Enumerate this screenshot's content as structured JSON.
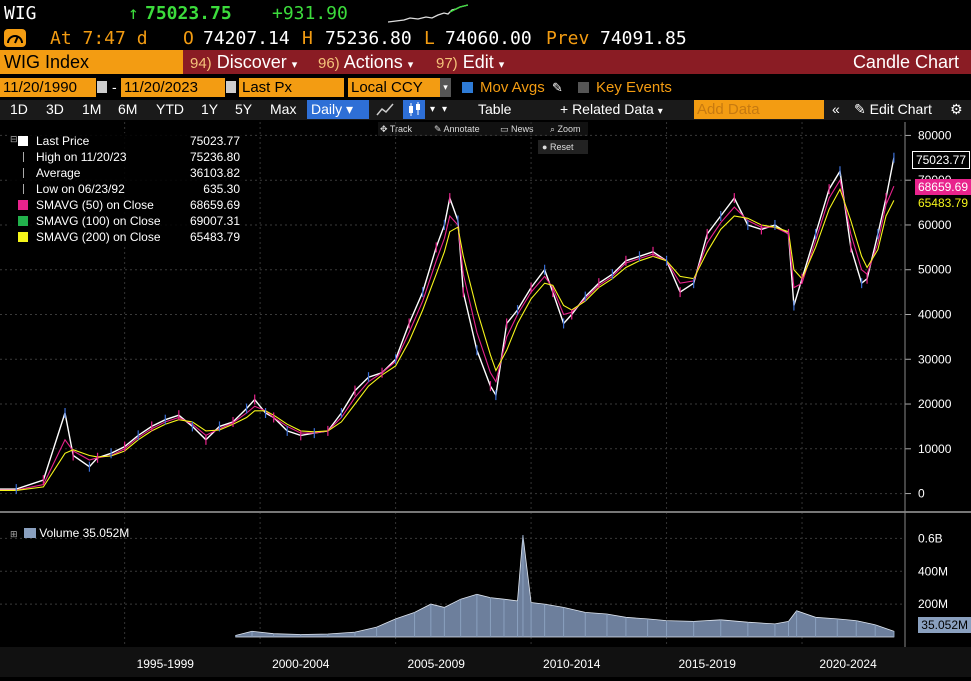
{
  "header": {
    "ticker": "WIG",
    "arrow": "↑",
    "last": "75023.75",
    "change": "+931.90",
    "time": "At 7:47 d",
    "open_label": "O",
    "open": "74207.14",
    "high_label": "H",
    "high": "75236.80",
    "low_label": "L",
    "low": "74060.00",
    "prev_label": "Prev",
    "prev": "74091.85"
  },
  "function_bar": {
    "security": "WIG Index",
    "discover_num": "94)",
    "discover": "Discover",
    "actions_num": "96)",
    "actions": "Actions",
    "edit_num": "97)",
    "edit": "Edit",
    "chart_type": "Candle Chart"
  },
  "toolbar": {
    "start_date": "11/20/1990",
    "end_date": "11/20/2023",
    "separator": "-",
    "field": "Last Px",
    "currency": "Local CCY",
    "mov_avgs": "Mov Avgs",
    "key_events": "Key Events",
    "periods": [
      "1D",
      "3D",
      "1M",
      "6M",
      "YTD",
      "1Y",
      "5Y",
      "Max"
    ],
    "frequency": "Daily",
    "table": "Table",
    "related": "+ Related Data",
    "add_data_placeholder": "Add Data",
    "edit_chart": "Edit Chart",
    "tools": [
      "Track",
      "Annotate",
      "News",
      "Zoom"
    ],
    "reset": "Reset"
  },
  "legend": {
    "items": [
      {
        "label": "Last Price",
        "value": "75023.77",
        "color": "#ffffff"
      },
      {
        "label": "High on 11/20/23",
        "value": "75236.80",
        "color": "#aaaaaa"
      },
      {
        "label": "Average",
        "value": "36103.82",
        "color": "#aaaaaa"
      },
      {
        "label": "Low on 06/23/92",
        "value": "635.30",
        "color": "#aaaaaa"
      },
      {
        "label": "SMAVG (50)  on Close",
        "value": "68659.69",
        "color": "#e8238c"
      },
      {
        "label": "SMAVG (100)  on Close",
        "value": "69007.31",
        "color": "#22b14c"
      },
      {
        "label": "SMAVG (200)  on Close",
        "value": "65483.79",
        "color": "#f5f51a"
      }
    ],
    "volume_label": "Volume 35.052M"
  },
  "price_tags": {
    "last": "75023.77",
    "sma50": "68659.69",
    "sma200": "65483.79",
    "volume": "35.052M"
  },
  "chart_data": {
    "type": "line",
    "x_tick_labels": [
      "1995-1999",
      "2000-2004",
      "2005-2009",
      "2010-2014",
      "2015-2019",
      "2020-2024"
    ],
    "y_ticks": [
      0,
      10000,
      20000,
      30000,
      40000,
      50000,
      60000,
      70000,
      80000
    ],
    "y_tick_labels": [
      "0",
      "10000",
      "20000",
      "30000",
      "40000",
      "50000",
      "60000",
      "70000",
      "80000"
    ],
    "ylim": [
      -3000,
      83000
    ],
    "x": [
      1990.9,
      1991.5,
      1992.5,
      1993.3,
      1993.6,
      1994.2,
      1994.5,
      1995.0,
      1995.5,
      1996.0,
      1996.5,
      1997.0,
      1997.5,
      1998.0,
      1998.5,
      1999.0,
      1999.5,
      2000.0,
      2000.3,
      2000.7,
      2001.0,
      2001.5,
      2002.0,
      2002.5,
      2003.0,
      2003.5,
      2004.0,
      2004.5,
      2005.0,
      2005.5,
      2006.0,
      2006.5,
      2007.0,
      2007.3,
      2007.5,
      2007.8,
      2008.0,
      2008.5,
      2009.0,
      2009.2,
      2009.6,
      2010.0,
      2010.5,
      2011.0,
      2011.3,
      2011.7,
      2012.0,
      2012.5,
      2013.0,
      2013.5,
      2014.0,
      2014.5,
      2015.0,
      2015.5,
      2016.0,
      2016.5,
      2017.0,
      2017.5,
      2018.0,
      2018.5,
      2019.0,
      2019.5,
      2020.0,
      2020.2,
      2020.5,
      2021.0,
      2021.5,
      2021.9,
      2022.3,
      2022.7,
      2022.9,
      2023.3,
      2023.6,
      2023.89
    ],
    "series": [
      {
        "values": [
          1000,
          1000,
          3000,
          18000,
          8500,
          6000,
          8000,
          9000,
          10500,
          13000,
          15000,
          16500,
          17500,
          15000,
          12000,
          15000,
          16000,
          19000,
          21000,
          18000,
          17000,
          14000,
          13000,
          13500,
          14000,
          18000,
          23000,
          26000,
          27000,
          30000,
          38000,
          45000,
          55000,
          60000,
          66000,
          61000,
          45000,
          32000,
          24000,
          22000,
          38000,
          41000,
          46000,
          50000,
          45000,
          38000,
          40000,
          44000,
          47000,
          49000,
          52000,
          53000,
          54000,
          52000,
          45000,
          47000,
          58000,
          62000,
          66000,
          60000,
          59000,
          60000,
          58000,
          42000,
          48000,
          58000,
          68000,
          72000,
          55000,
          47000,
          48000,
          58000,
          66000,
          75024
        ]
      },
      {
        "values": [
          800,
          800,
          2000,
          12000,
          9500,
          7500,
          8000,
          8500,
          10000,
          12500,
          14500,
          16000,
          17000,
          15500,
          13000,
          14500,
          15800,
          18000,
          19500,
          18500,
          17000,
          15000,
          13500,
          13500,
          14000,
          17000,
          21500,
          25000,
          27000,
          29500,
          36000,
          43000,
          52000,
          57000,
          62000,
          60000,
          49000,
          36000,
          27000,
          25000,
          35000,
          40000,
          45000,
          48500,
          46000,
          40000,
          40500,
          43500,
          46500,
          48500,
          51500,
          52500,
          53500,
          52000,
          47000,
          47500,
          56000,
          60500,
          64000,
          61000,
          59500,
          59500,
          58000,
          46000,
          47000,
          56500,
          66000,
          70000,
          58000,
          50000,
          49000,
          56000,
          64500,
          68660
        ]
      },
      {
        "values": [
          700,
          700,
          1500,
          9000,
          9800,
          8500,
          8200,
          8400,
          9500,
          12000,
          14000,
          15500,
          16500,
          16000,
          14000,
          14200,
          15500,
          17000,
          18500,
          18500,
          17500,
          15500,
          14000,
          13800,
          14000,
          16000,
          20000,
          24000,
          26500,
          28500,
          34000,
          41000,
          49000,
          54000,
          58500,
          59500,
          53000,
          41000,
          31000,
          27500,
          32000,
          38000,
          43500,
          47000,
          46500,
          42000,
          41000,
          43000,
          46000,
          48000,
          50500,
          52000,
          53000,
          52000,
          48500,
          48000,
          54000,
          59000,
          62000,
          61500,
          60000,
          59500,
          58500,
          50000,
          48000,
          55000,
          63500,
          68000,
          61000,
          53000,
          50500,
          54500,
          62000,
          65484
        ]
      }
    ],
    "volume_ticks": [
      "0.6B",
      "400M",
      "200M"
    ],
    "volume_ylim": [
      0,
      700
    ],
    "volume_x": [
      1999.6,
      2000.2,
      2001.0,
      2002.0,
      2003.0,
      2004.0,
      2004.8,
      2005.5,
      2006.2,
      2006.8,
      2007.3,
      2007.9,
      2008.5,
      2009.0,
      2009.5,
      2010.0,
      2010.2,
      2010.5,
      2011.0,
      2011.7,
      2012.5,
      2013.3,
      2014.0,
      2014.8,
      2015.5,
      2016.5,
      2017.5,
      2018.5,
      2019.5,
      2020.0,
      2020.3,
      2021.0,
      2021.8,
      2022.5,
      2023.2,
      2023.89
    ],
    "volume_values": [
      10,
      35,
      20,
      15,
      18,
      30,
      60,
      110,
      150,
      200,
      180,
      230,
      260,
      240,
      230,
      220,
      620,
      210,
      200,
      180,
      150,
      140,
      120,
      110,
      100,
      95,
      105,
      90,
      80,
      95,
      160,
      120,
      110,
      100,
      75,
      35
    ]
  }
}
